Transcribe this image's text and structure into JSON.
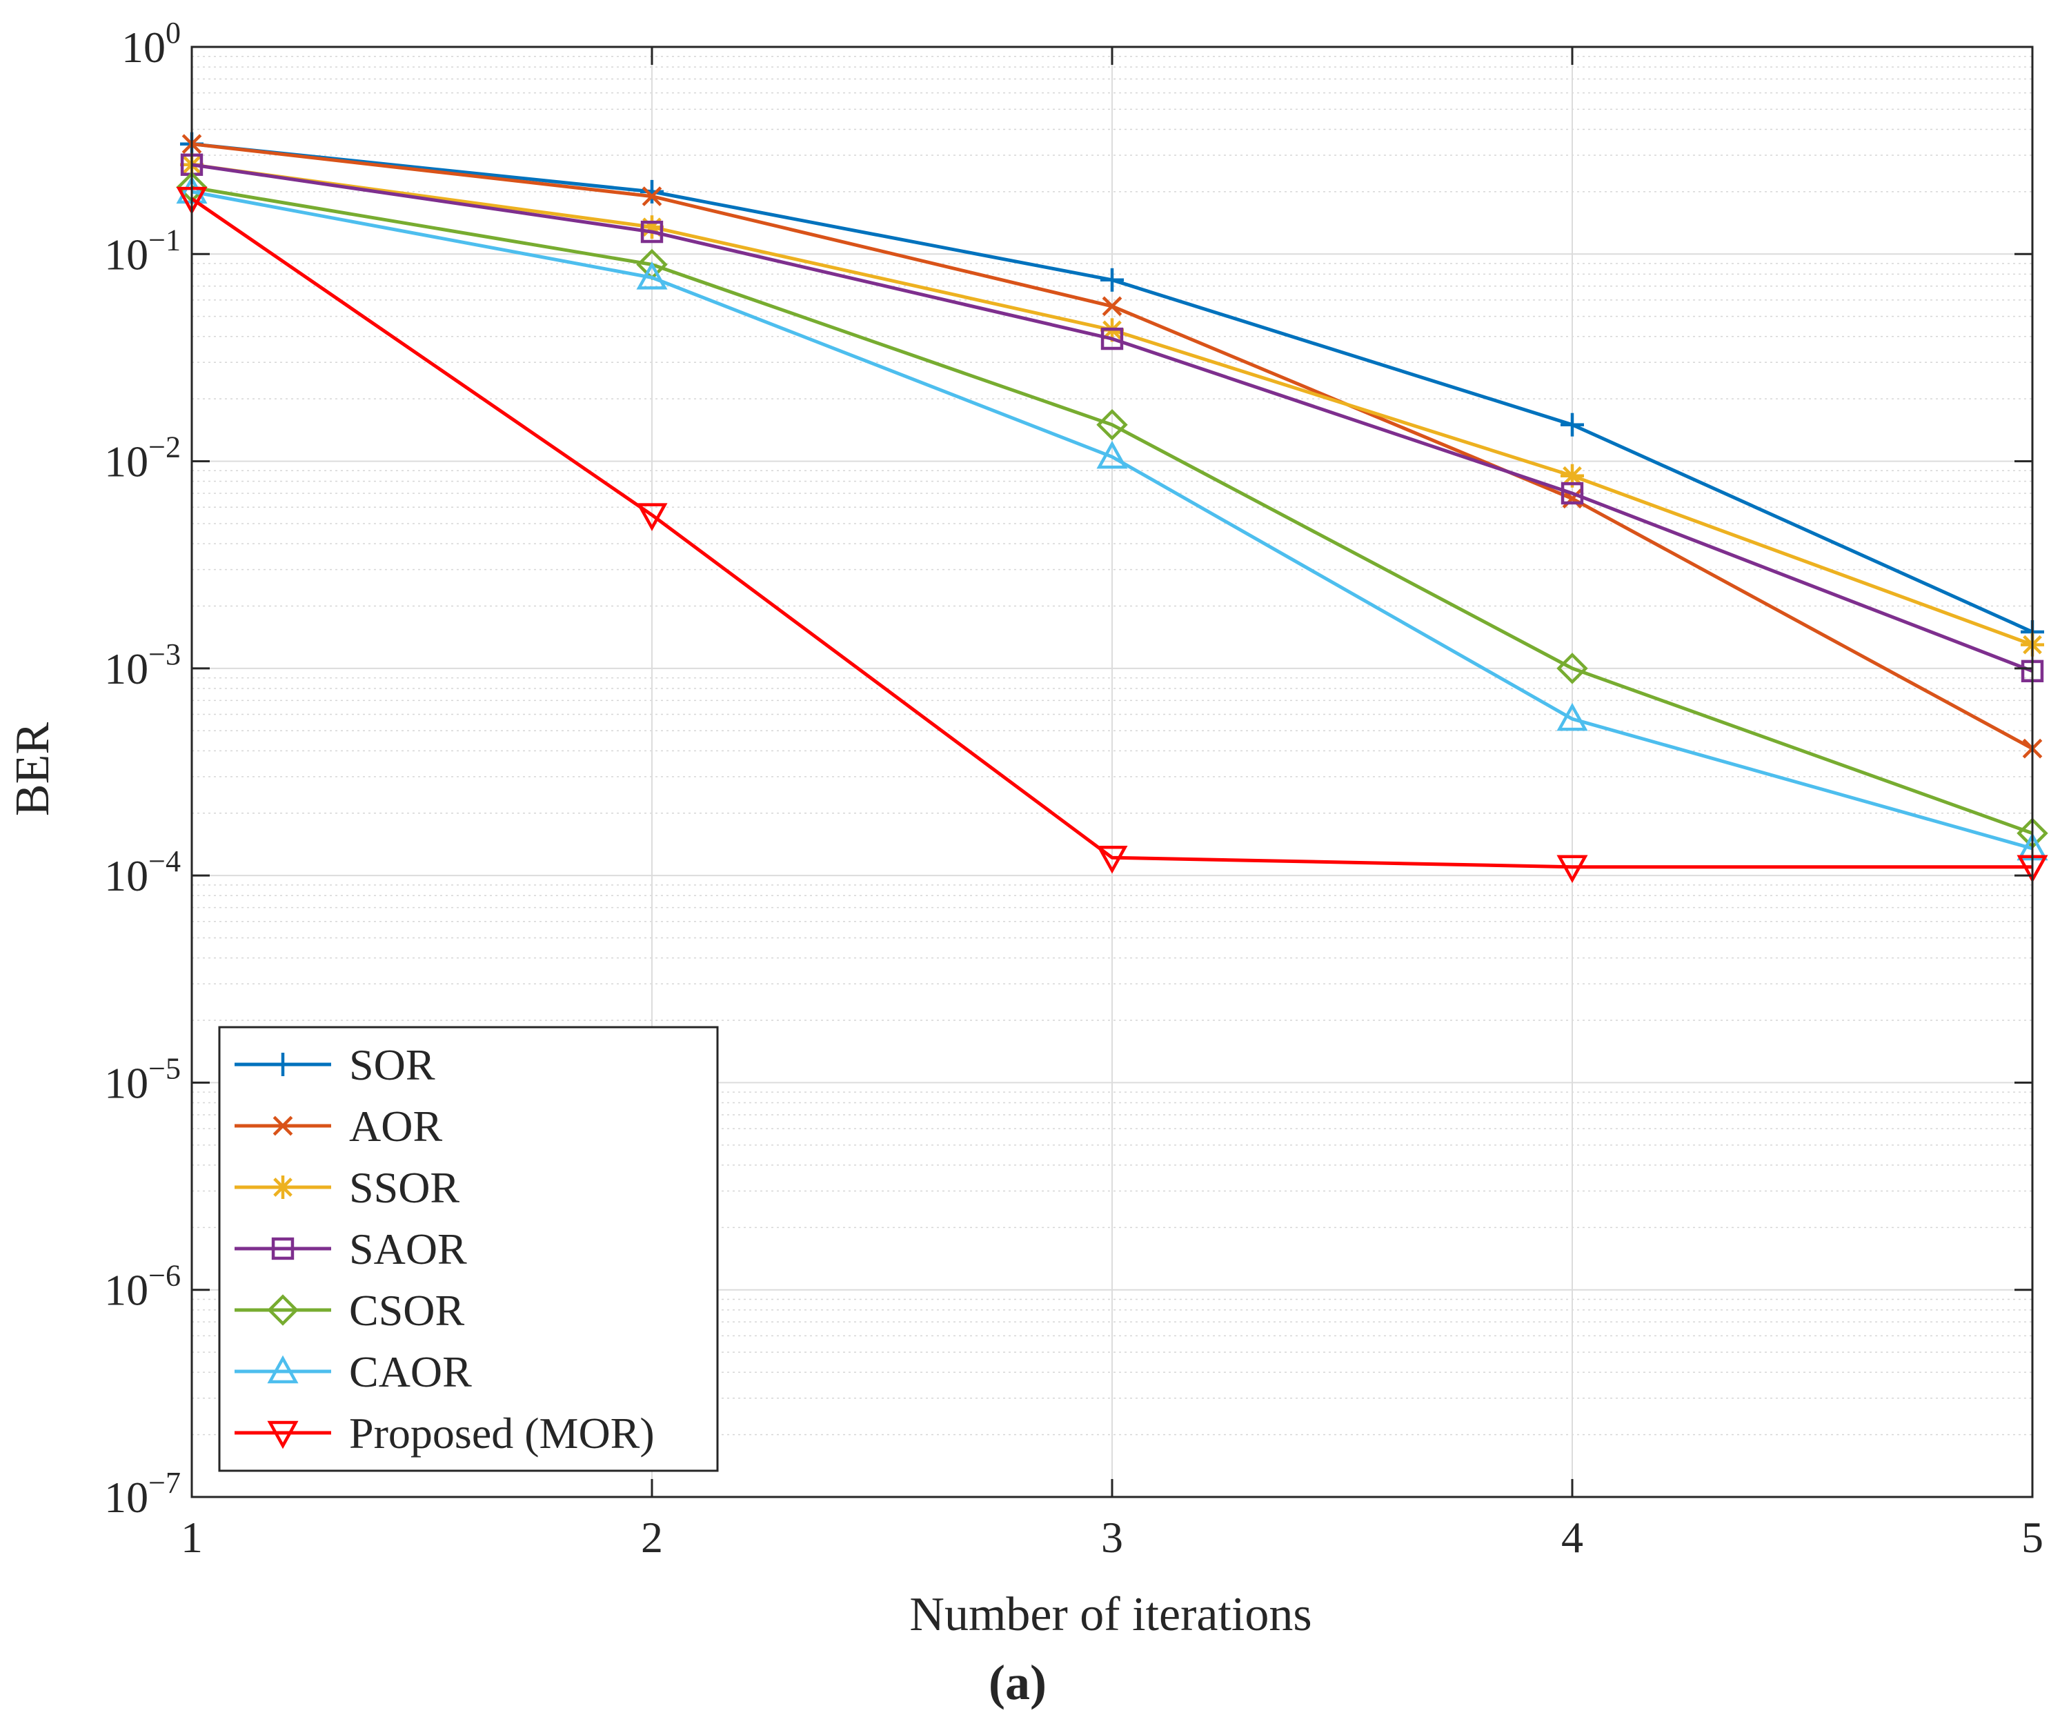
{
  "chart_data": {
    "type": "line",
    "title": "",
    "caption": "(a)",
    "xlabel": "Number of iterations",
    "ylabel": "BER",
    "x": [
      1,
      2,
      3,
      4,
      5
    ],
    "xlim": [
      1,
      5
    ],
    "ylim": [
      1e-07,
      1
    ],
    "yscale": "log",
    "grid": true,
    "x_ticks": [
      "1",
      "2",
      "3",
      "4",
      "5"
    ],
    "y_ticks": [
      {
        "base": "10",
        "exp": "0",
        "value": 1
      },
      {
        "base": "10",
        "exp": "−1",
        "value": 0.1
      },
      {
        "base": "10",
        "exp": "−2",
        "value": 0.01
      },
      {
        "base": "10",
        "exp": "−3",
        "value": 0.001
      },
      {
        "base": "10",
        "exp": "−4",
        "value": 0.0001
      },
      {
        "base": "10",
        "exp": "−5",
        "value": 1e-05
      },
      {
        "base": "10",
        "exp": "−6",
        "value": 1e-06
      },
      {
        "base": "10",
        "exp": "−7",
        "value": 1e-07
      }
    ],
    "legend_position": "bottom-left",
    "series": [
      {
        "name": "SOR",
        "color": "#0072BD",
        "marker": "plus",
        "values": [
          0.34,
          0.2,
          0.075,
          0.015,
          0.0015
        ]
      },
      {
        "name": "AOR",
        "color": "#D95319",
        "marker": "x",
        "values": [
          0.34,
          0.19,
          0.056,
          0.0066,
          0.00041
        ]
      },
      {
        "name": "SSOR",
        "color": "#EDB120",
        "marker": "asterisk",
        "values": [
          0.27,
          0.135,
          0.043,
          0.0085,
          0.0013
        ]
      },
      {
        "name": "SAOR",
        "color": "#7E2F8E",
        "marker": "square",
        "values": [
          0.27,
          0.128,
          0.039,
          0.007,
          0.00097
        ]
      },
      {
        "name": "CSOR",
        "color": "#77AC30",
        "marker": "diamond",
        "values": [
          0.21,
          0.089,
          0.015,
          0.001,
          0.00016
        ]
      },
      {
        "name": "CAOR",
        "color": "#4DBEEE",
        "marker": "triangle-up",
        "values": [
          0.2,
          0.077,
          0.0105,
          0.00057,
          0.000135
        ]
      },
      {
        "name": "Proposed (MOR)",
        "color": "#FF0000",
        "marker": "triangle-down",
        "values": [
          0.185,
          0.0055,
          0.000122,
          0.00011,
          0.00011
        ]
      }
    ]
  }
}
